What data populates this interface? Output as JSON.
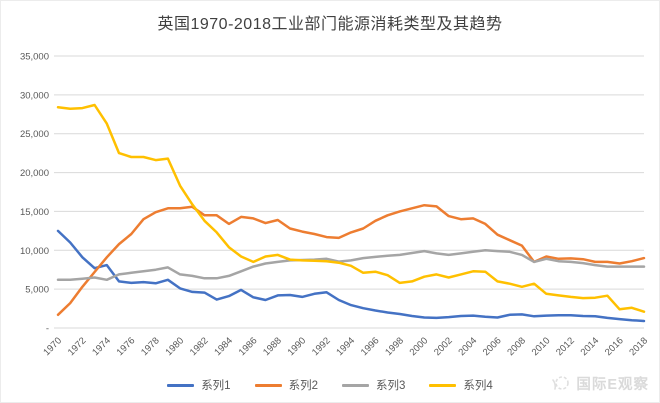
{
  "chart_data": {
    "type": "line",
    "title": "英国1970-2018工业部门能源消耗类型及其趋势",
    "x": [
      1970,
      1971,
      1972,
      1973,
      1974,
      1975,
      1976,
      1977,
      1978,
      1979,
      1980,
      1981,
      1982,
      1983,
      1984,
      1985,
      1986,
      1987,
      1988,
      1989,
      1990,
      1991,
      1992,
      1993,
      1994,
      1995,
      1996,
      1997,
      1998,
      1999,
      2000,
      2001,
      2002,
      2003,
      2004,
      2005,
      2006,
      2007,
      2008,
      2009,
      2010,
      2011,
      2012,
      2013,
      2014,
      2015,
      2016,
      2017,
      2018
    ],
    "x_tick_labels": [
      "1970",
      "1972",
      "1974",
      "1976",
      "1978",
      "1980",
      "1982",
      "1984",
      "1986",
      "1988",
      "1990",
      "1992",
      "1994",
      "1996",
      "1998",
      "2000",
      "2002",
      "2004",
      "2006",
      "2008",
      "2010",
      "2012",
      "2014",
      "2016",
      "2018"
    ],
    "y_axis": {
      "min": 0,
      "max": 35000,
      "step": 5000,
      "tick_labels": [
        "-",
        "5,000",
        "10,000",
        "15,000",
        "20,000",
        "25,000",
        "30,000",
        "35,000"
      ]
    },
    "grid": true,
    "legend_position": "bottom",
    "series": [
      {
        "name": "系列1",
        "color": "#4472C4",
        "values": [
          12500,
          11000,
          9100,
          7700,
          8100,
          6000,
          5800,
          5900,
          5750,
          6200,
          5100,
          4650,
          4550,
          3650,
          4100,
          4900,
          3950,
          3600,
          4200,
          4250,
          4000,
          4400,
          4600,
          3600,
          2950,
          2550,
          2250,
          2000,
          1800,
          1550,
          1350,
          1300,
          1400,
          1550,
          1600,
          1450,
          1350,
          1700,
          1750,
          1500,
          1600,
          1650,
          1650,
          1550,
          1500,
          1300,
          1150,
          1000,
          900
        ]
      },
      {
        "name": "系列2",
        "color": "#ED7D31",
        "values": [
          1700,
          3200,
          5300,
          7200,
          9100,
          10800,
          12100,
          14000,
          14900,
          15400,
          15400,
          15600,
          14500,
          14500,
          13400,
          14300,
          14100,
          13500,
          13900,
          12800,
          12400,
          12100,
          11700,
          11600,
          12300,
          12800,
          13800,
          14500,
          15000,
          15400,
          15800,
          15650,
          14400,
          14000,
          14100,
          13400,
          12000,
          11300,
          10600,
          8500,
          9200,
          8900,
          8950,
          8850,
          8500,
          8500,
          8300,
          8600,
          9000
        ]
      },
      {
        "name": "系列3",
        "color": "#A5A5A5",
        "values": [
          6200,
          6200,
          6350,
          6500,
          6200,
          6900,
          7100,
          7300,
          7500,
          7800,
          6900,
          6700,
          6400,
          6400,
          6700,
          7300,
          7900,
          8300,
          8500,
          8700,
          8750,
          8800,
          8900,
          8550,
          8700,
          9000,
          9150,
          9300,
          9400,
          9650,
          9900,
          9600,
          9400,
          9600,
          9800,
          10000,
          9900,
          9800,
          9400,
          8500,
          8900,
          8600,
          8500,
          8350,
          8100,
          7900,
          7900,
          7900,
          7900
        ]
      },
      {
        "name": "系列4",
        "color": "#FFC000",
        "values": [
          28400,
          28200,
          28300,
          28700,
          26300,
          22500,
          22000,
          22000,
          21600,
          21800,
          18300,
          15900,
          13800,
          12300,
          10400,
          9200,
          8500,
          9200,
          9400,
          8800,
          8700,
          8650,
          8600,
          8400,
          8000,
          7100,
          7250,
          6800,
          5800,
          6000,
          6600,
          6900,
          6500,
          6900,
          7300,
          7250,
          6000,
          5700,
          5300,
          5700,
          4400,
          4200,
          4000,
          3850,
          3900,
          4150,
          2400,
          2600,
          2100
        ]
      }
    ]
  },
  "watermark": {
    "text": "国际E观察",
    "color": "#d6d6d6"
  },
  "styles": {
    "grid_color": "#d9d9d9",
    "axis_label_color": "#595959",
    "title_color": "#404040",
    "legend_text_color": "#595959",
    "background": "#ffffff"
  }
}
